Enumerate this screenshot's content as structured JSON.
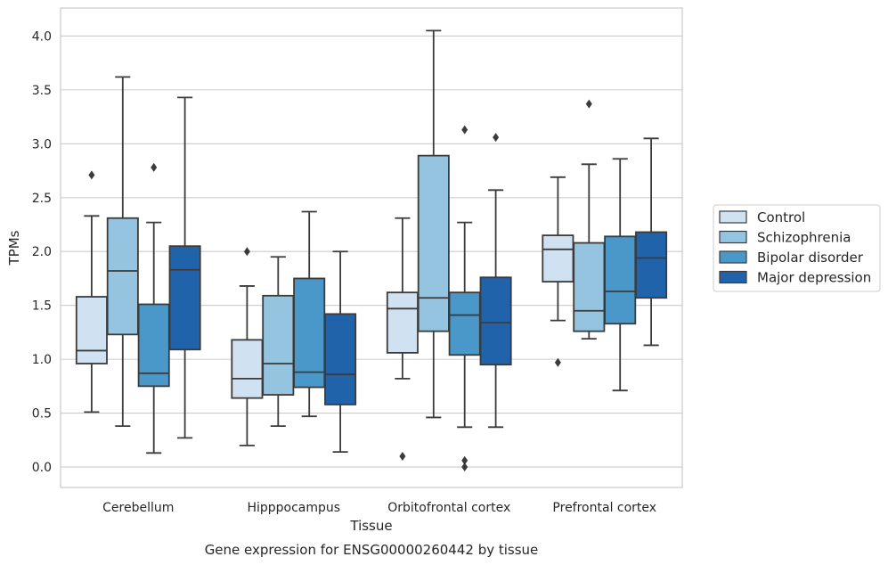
{
  "chart_data": {
    "type": "box",
    "caption": "Gene expression for ENSG00000260442 by tissue",
    "xlabel": "Tissue",
    "ylabel": "TPMs",
    "ylim": [
      -0.19,
      4.26
    ],
    "yticks": [
      0.0,
      0.5,
      1.0,
      1.5,
      2.0,
      2.5,
      3.0,
      3.5,
      4.0
    ],
    "ytick_labels": [
      "0.0",
      "0.5",
      "1.0",
      "1.5",
      "2.0",
      "2.5",
      "3.0",
      "3.5",
      "4.0"
    ],
    "grid": true,
    "legend_position": "right",
    "categories": [
      "Cerebellum",
      "Hipppocampus",
      "Orbitofrontal cortex",
      "Prefrontal cortex"
    ],
    "series": [
      {
        "name": "Control",
        "color": "#d0e1f2",
        "boxes": [
          {
            "whislo": 0.51,
            "q1": 0.96,
            "med": 1.08,
            "q3": 1.58,
            "whishi": 2.33,
            "fliers": [
              2.71
            ]
          },
          {
            "whislo": 0.2,
            "q1": 0.64,
            "med": 0.82,
            "q3": 1.18,
            "whishi": 1.68,
            "fliers": [
              2.0
            ]
          },
          {
            "whislo": 0.82,
            "q1": 1.06,
            "med": 1.47,
            "q3": 1.62,
            "whishi": 2.31,
            "fliers": [
              0.1
            ]
          },
          {
            "whislo": 1.36,
            "q1": 1.72,
            "med": 2.02,
            "q3": 2.15,
            "whishi": 2.69,
            "fliers": [
              0.97
            ]
          }
        ]
      },
      {
        "name": "Schizophrenia",
        "color": "#94c4df",
        "boxes": [
          {
            "whislo": 0.38,
            "q1": 1.23,
            "med": 1.82,
            "q3": 2.31,
            "whishi": 3.62,
            "fliers": []
          },
          {
            "whislo": 0.38,
            "q1": 0.67,
            "med": 0.96,
            "q3": 1.59,
            "whishi": 1.95,
            "fliers": []
          },
          {
            "whislo": 0.46,
            "q1": 1.26,
            "med": 1.57,
            "q3": 2.89,
            "whishi": 4.05,
            "fliers": []
          },
          {
            "whislo": 1.19,
            "q1": 1.26,
            "med": 1.45,
            "q3": 2.08,
            "whishi": 2.81,
            "fliers": [
              3.37
            ]
          }
        ]
      },
      {
        "name": "Bipolar disorder",
        "color": "#4a98c9",
        "boxes": [
          {
            "whislo": 0.13,
            "q1": 0.75,
            "med": 0.87,
            "q3": 1.51,
            "whishi": 2.27,
            "fliers": [
              2.78
            ]
          },
          {
            "whislo": 0.47,
            "q1": 0.74,
            "med": 0.88,
            "q3": 1.75,
            "whishi": 2.37,
            "fliers": []
          },
          {
            "whislo": 0.37,
            "q1": 1.04,
            "med": 1.41,
            "q3": 1.62,
            "whishi": 2.27,
            "fliers": [
              3.13,
              0.06,
              0.0
            ]
          },
          {
            "whislo": 0.71,
            "q1": 1.33,
            "med": 1.63,
            "q3": 2.14,
            "whishi": 2.86,
            "fliers": []
          }
        ]
      },
      {
        "name": "Major depression",
        "color": "#2163aa",
        "boxes": [
          {
            "whislo": 0.27,
            "q1": 1.09,
            "med": 1.83,
            "q3": 2.05,
            "whishi": 3.43,
            "fliers": []
          },
          {
            "whislo": 0.14,
            "q1": 0.58,
            "med": 0.86,
            "q3": 1.42,
            "whishi": 2.0,
            "fliers": []
          },
          {
            "whislo": 0.37,
            "q1": 0.95,
            "med": 1.34,
            "q3": 1.76,
            "whishi": 2.57,
            "fliers": [
              3.06
            ]
          },
          {
            "whislo": 1.13,
            "q1": 1.57,
            "med": 1.94,
            "q3": 2.18,
            "whishi": 3.05,
            "fliers": []
          }
        ]
      }
    ]
  }
}
